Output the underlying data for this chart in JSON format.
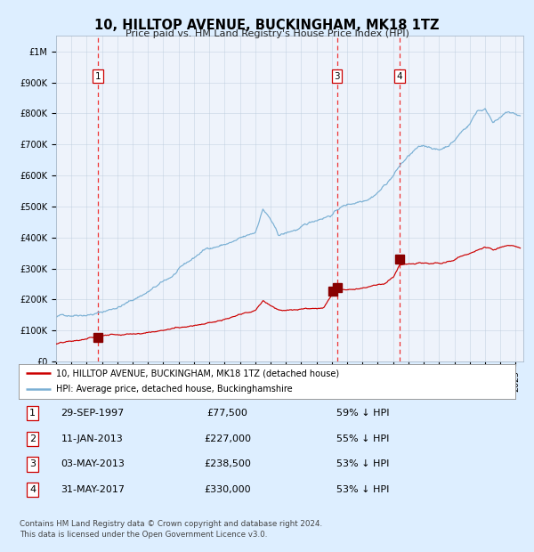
{
  "title": "10, HILLTOP AVENUE, BUCKINGHAM, MK18 1TZ",
  "subtitle": "Price paid vs. HM Land Registry's House Price Index (HPI)",
  "legend_red": "10, HILLTOP AVENUE, BUCKINGHAM, MK18 1TZ (detached house)",
  "legend_blue": "HPI: Average price, detached house, Buckinghamshire",
  "table_entries": [
    {
      "num": 1,
      "date": "29-SEP-1997",
      "price": "£77,500",
      "pct": "59% ↓ HPI"
    },
    {
      "num": 2,
      "date": "11-JAN-2013",
      "price": "£227,000",
      "pct": "55% ↓ HPI"
    },
    {
      "num": 3,
      "date": "03-MAY-2013",
      "price": "£238,500",
      "pct": "53% ↓ HPI"
    },
    {
      "num": 4,
      "date": "31-MAY-2017",
      "price": "£330,000",
      "pct": "53% ↓ HPI"
    }
  ],
  "footnote1": "Contains HM Land Registry data © Crown copyright and database right 2024.",
  "footnote2": "This data is licensed under the Open Government Licence v3.0.",
  "bg_color": "#ddeeff",
  "plot_bg": "#eef3fb",
  "red_color": "#cc0000",
  "blue_color": "#7ab0d4",
  "sale_marker_color": "#880000",
  "vline_color": "#ee3333",
  "ylim": [
    0,
    1050000
  ],
  "xlim_start": 1995.0,
  "xlim_end": 2025.5
}
